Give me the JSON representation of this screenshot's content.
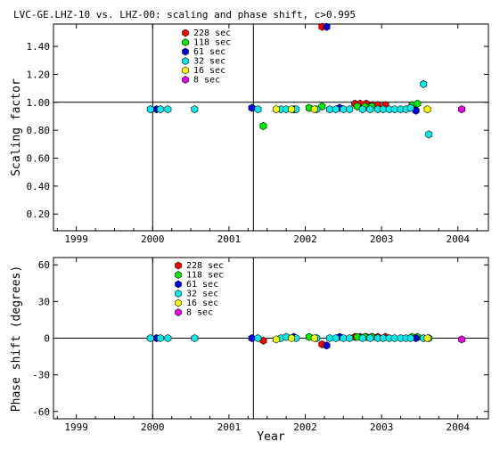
{
  "chart_data": [
    {
      "type": "scatter",
      "title": "LVC-GE.LHZ-10 vs. LHZ-00: scaling and phase shift, c>0.995",
      "ylabel": "Scaling factor",
      "xlabel": "",
      "xlim": [
        1998.7,
        2004.4
      ],
      "ylim": [
        0.08,
        1.56
      ],
      "x_ticks": [
        1999,
        2000,
        2001,
        2002,
        2003,
        2004
      ],
      "x_tick_labels": [
        "1999",
        "2000",
        "2001",
        "2002",
        "2003",
        "2004"
      ],
      "y_ticks": [
        0.2,
        0.4,
        0.6,
        0.8,
        1.0,
        1.2,
        1.4
      ],
      "y_tick_labels": [
        "0.20",
        "0.40",
        "0.60",
        "0.80",
        "1.00",
        "1.20",
        "1.40"
      ],
      "reference_line_y": 1.0,
      "vertical_lines_x": [
        2000.0,
        2001.32
      ],
      "legend_position": "top-center",
      "series": [
        {
          "name": "228 sec",
          "color": "#ff0000",
          "x": [
            2002.22,
            2002.65,
            2002.72,
            2002.8,
            2002.88,
            2002.95,
            2003.05
          ],
          "y": [
            1.54,
            0.99,
            0.99,
            0.99,
            0.98,
            0.98,
            0.98
          ]
        },
        {
          "name": "118 sec",
          "color": "#00ee00",
          "x": [
            2001.45,
            2002.05,
            2002.22,
            2002.68,
            2002.78,
            2002.87,
            2003.4,
            2003.47
          ],
          "y": [
            0.83,
            0.96,
            0.97,
            0.97,
            0.97,
            0.97,
            0.98,
            0.99
          ]
        },
        {
          "name": "61 sec",
          "color": "#0000ee",
          "x": [
            2000.05,
            2001.3,
            2001.85,
            2002.28,
            2002.45,
            2003.45
          ],
          "y": [
            0.95,
            0.96,
            0.95,
            1.54,
            0.96,
            0.94
          ]
        },
        {
          "name": "32 sec",
          "color": "#00eeee",
          "x": [
            1999.97,
            2000.1,
            2000.2,
            2000.55,
            2001.38,
            2001.68,
            2001.75,
            2001.88,
            2002.15,
            2002.32,
            2002.4,
            2002.5,
            2002.58,
            2002.75,
            2002.85,
            2002.95,
            2003.02,
            2003.1,
            2003.17,
            2003.25,
            2003.32,
            2003.38,
            2003.55,
            2003.62
          ],
          "y": [
            0.95,
            0.95,
            0.95,
            0.95,
            0.95,
            0.95,
            0.95,
            0.95,
            0.95,
            0.95,
            0.95,
            0.95,
            0.95,
            0.95,
            0.95,
            0.95,
            0.95,
            0.95,
            0.95,
            0.95,
            0.95,
            0.96,
            1.13,
            0.77
          ]
        },
        {
          "name": "16 sec",
          "color": "#ffff00",
          "x": [
            2001.62,
            2001.82,
            2002.12,
            2003.6
          ],
          "y": [
            0.95,
            0.95,
            0.95,
            0.95
          ]
        },
        {
          "name": "8 sec",
          "color": "#ee00ee",
          "x": [
            2004.05
          ],
          "y": [
            0.95
          ]
        }
      ]
    },
    {
      "type": "scatter",
      "ylabel": "Phase shift (degrees)",
      "xlabel": "Year",
      "xlim": [
        1998.7,
        2004.4
      ],
      "ylim": [
        -66,
        66
      ],
      "x_ticks": [
        1999,
        2000,
        2001,
        2002,
        2003,
        2004
      ],
      "x_tick_labels": [
        "1999",
        "2000",
        "2001",
        "2002",
        "2003",
        "2004"
      ],
      "y_ticks": [
        -60,
        -30,
        0,
        30,
        60
      ],
      "y_tick_labels": [
        "-60",
        "-30",
        "0",
        "30",
        "60"
      ],
      "reference_line_y": 0,
      "vertical_lines_x": [
        2000.0,
        2001.32
      ],
      "legend_position": "top-center",
      "series": [
        {
          "name": "228 sec",
          "color": "#ff0000",
          "x": [
            2001.45,
            2002.22,
            2002.65,
            2002.72,
            2002.8,
            2002.88,
            2002.95,
            2003.05
          ],
          "y": [
            -2,
            -5,
            1,
            1,
            1,
            1,
            1,
            1
          ]
        },
        {
          "name": "118 sec",
          "color": "#00ee00",
          "x": [
            2002.05,
            2002.68,
            2002.78,
            2002.87,
            2003.4,
            2003.47
          ],
          "y": [
            1,
            1,
            1,
            1,
            1,
            1
          ]
        },
        {
          "name": "61 sec",
          "color": "#0000ee",
          "x": [
            2000.05,
            2001.3,
            2001.85,
            2002.28,
            2002.45,
            2003.45
          ],
          "y": [
            0,
            0,
            1,
            -6,
            1,
            0
          ]
        },
        {
          "name": "32 sec",
          "color": "#00eeee",
          "x": [
            1999.97,
            2000.1,
            2000.2,
            2000.55,
            2001.38,
            2001.68,
            2001.75,
            2001.88,
            2002.15,
            2002.32,
            2002.4,
            2002.5,
            2002.58,
            2002.75,
            2002.85,
            2002.95,
            2003.02,
            2003.1,
            2003.17,
            2003.25,
            2003.32,
            2003.38,
            2003.55,
            2003.62
          ],
          "y": [
            0,
            0,
            0,
            0,
            0,
            0,
            1,
            0,
            0,
            0,
            0,
            0,
            0,
            0,
            0,
            0,
            0,
            0,
            0,
            0,
            0,
            0,
            0,
            0
          ]
        },
        {
          "name": "16 sec",
          "color": "#ffff00",
          "x": [
            2001.62,
            2001.82,
            2002.12,
            2003.6
          ],
          "y": [
            -1,
            0,
            0,
            0
          ]
        },
        {
          "name": "8 sec",
          "color": "#ee00ee",
          "x": [
            2004.05
          ],
          "y": [
            -1
          ]
        }
      ]
    }
  ]
}
